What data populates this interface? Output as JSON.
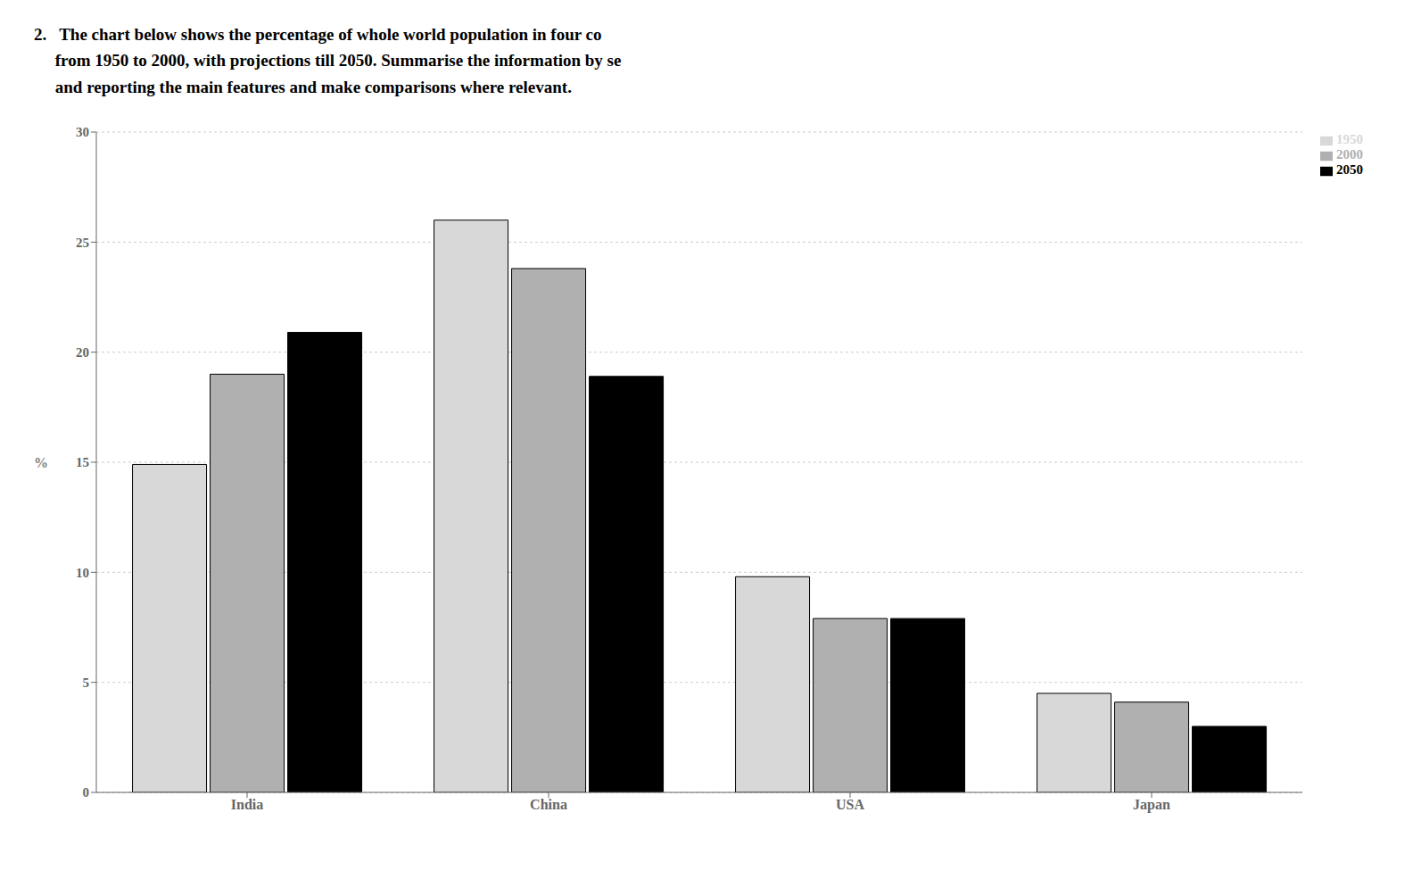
{
  "chart_data": {
    "type": "bar",
    "title": "2.   The chart below shows the percentage of whole world population in four co\n     from 1950 to 2000, with projections till 2050. Summarise the information by se\n     and reporting the main features and make comparisons where relevant.",
    "categories": [
      "India",
      "China",
      "USA",
      "Japan"
    ],
    "series": [
      {
        "name": "1950",
        "color": "#d8d8d8",
        "values": [
          14.9,
          26.0,
          9.8,
          4.5
        ]
      },
      {
        "name": "2000",
        "color": "#b0b0b0",
        "values": [
          19.0,
          23.8,
          7.9,
          4.1
        ]
      },
      {
        "name": "2050",
        "color": "#000000",
        "values": [
          20.9,
          18.9,
          7.9,
          3.0
        ]
      }
    ],
    "ylabel": "%",
    "ylim": [
      0,
      30
    ],
    "yticks": [
      0,
      5,
      10,
      15,
      20,
      25,
      30
    ],
    "grid": true,
    "legend": "right"
  }
}
